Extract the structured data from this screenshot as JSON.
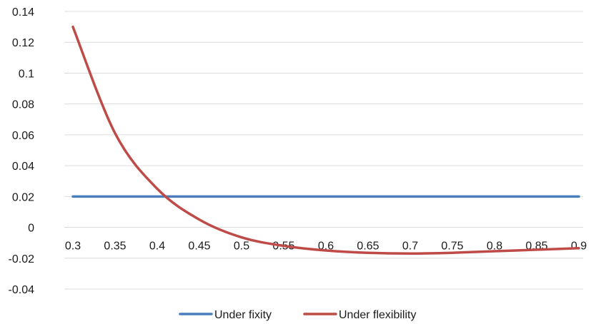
{
  "chart_data": {
    "type": "line",
    "title": "",
    "xlabel": "",
    "ylabel": "",
    "x": [
      0.3,
      0.35,
      0.4,
      0.45,
      0.5,
      0.55,
      0.6,
      0.65,
      0.7,
      0.75,
      0.8,
      0.85,
      0.9
    ],
    "x_tick_labels": [
      "0.3",
      "0.35",
      "0.4",
      "0.45",
      "0.5",
      "0.55",
      "0.6",
      "0.65",
      "0.7",
      "0.75",
      "0.8",
      "0.85",
      "0.9"
    ],
    "y_ticks": [
      0.14,
      0.12,
      0.1,
      0.08,
      0.06,
      0.04,
      0.02,
      0,
      -0.02,
      -0.04
    ],
    "y_tick_labels": [
      "0.14",
      "0.12",
      "0.1",
      "0.08",
      "0.06",
      "0.04",
      "0.02",
      "0",
      "-0.02",
      "-0.04"
    ],
    "ylim": [
      -0.04,
      0.14
    ],
    "grid": true,
    "legend_position": "bottom",
    "series": [
      {
        "name": "Under fixity",
        "color": "#4a7ebb",
        "values": [
          0.02,
          0.02,
          0.02,
          0.02,
          0.02,
          0.02,
          0.02,
          0.02,
          0.02,
          0.02,
          0.02,
          0.02,
          0.02
        ]
      },
      {
        "name": "Under flexibility",
        "color": "#be4b48",
        "values": [
          0.13,
          0.061,
          0.025,
          0.005,
          -0.0065,
          -0.012,
          -0.015,
          -0.0165,
          -0.017,
          -0.0165,
          -0.0155,
          -0.0145,
          -0.0135
        ]
      }
    ]
  }
}
